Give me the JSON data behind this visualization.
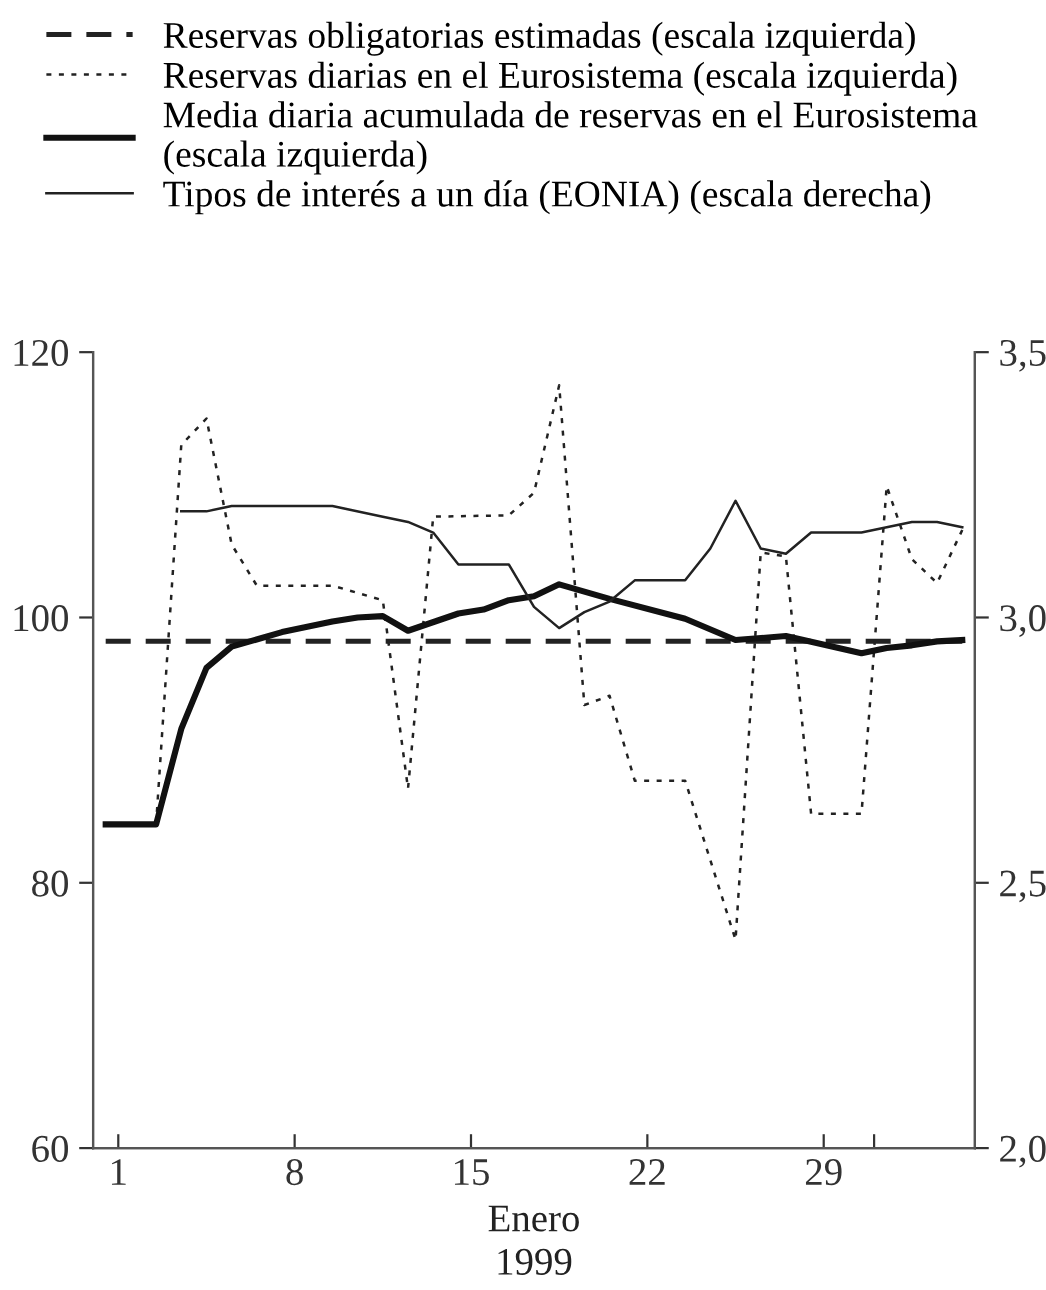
{
  "chart_data": {
    "type": "line",
    "xlabel": "Enero\n1999",
    "xlim": [
      0,
      35
    ],
    "xticks": [
      1,
      8,
      15,
      22,
      29,
      {
        "value": 31,
        "label": null
      }
    ],
    "ylim": [
      60,
      120
    ],
    "yticks": [
      60,
      80,
      100,
      120
    ],
    "y2lim": [
      2.0,
      3.5
    ],
    "y2ticks": [
      {
        "value": 2.0,
        "label": "2,0"
      },
      {
        "value": 2.5,
        "label": "2,5"
      },
      {
        "value": 3.0,
        "label": "3,0"
      },
      {
        "value": 3.5,
        "label": "3,5"
      }
    ],
    "grid": false,
    "legend": "top",
    "marker": "none",
    "series": [
      {
        "name": "Reservas obligatorias estimadas (escala izquierda)",
        "color": "#222222",
        "line_style": "dashed",
        "x": [
          0.5,
          34.5
        ],
        "values": [
          98.2,
          98.2
        ]
      },
      {
        "name": "Reservas diarias en el Eurosistema (escala izquierda)",
        "color": "#222222",
        "line_style": "dotted",
        "x": [
          2.5,
          3.5,
          4.5,
          5.5,
          6.5,
          9.5,
          11.5,
          12.5,
          13.5,
          16.5,
          17.5,
          18.5,
          19.5,
          20.5,
          21.5,
          23.5,
          25.5,
          26.5,
          27.5,
          28.5,
          30.5,
          31.5,
          32.5,
          33.5,
          34.5
        ],
        "values": [
          84.4,
          113,
          115,
          105.5,
          102.4,
          102.4,
          101.3,
          87.1,
          107.6,
          107.7,
          109.4,
          117.5,
          93.4,
          94.1,
          87.7,
          87.7,
          75.7,
          104.9,
          104.6,
          85.2,
          85.2,
          109.9,
          104.4,
          102.6,
          106.6
        ]
      },
      {
        "name": "Media diaria acumulada de reservas en el Eurosistema\n(escala izquierda)",
        "color": "#111111",
        "line_style": "solid",
        "x": [
          0.5,
          2.5,
          3.5,
          4.5,
          5.5,
          7.5,
          9.5,
          10.5,
          11.5,
          12.5,
          14.5,
          15.5,
          16.5,
          17.5,
          18.5,
          20.5,
          23.5,
          25.5,
          27.5,
          30.5,
          31.5,
          32.5,
          33.5,
          34.5
        ],
        "values": [
          84.4,
          84.4,
          91.6,
          96.2,
          97.8,
          98.9,
          99.7,
          100.0,
          100.1,
          99.0,
          100.3,
          100.6,
          101.3,
          101.6,
          102.5,
          101.4,
          99.9,
          98.3,
          98.6,
          97.3,
          97.7,
          97.9,
          98.2,
          98.3
        ]
      },
      {
        "name": "Tipos de interés a un día (EONIA) (escala derecha)",
        "color": "#222222",
        "line_style": "solid",
        "axis": "y2",
        "x": [
          3.5,
          4.5,
          5.5,
          9.5,
          11.5,
          12.5,
          13.5,
          14.5,
          16.5,
          17.5,
          18.5,
          19.5,
          20.5,
          21.5,
          23.5,
          24.5,
          25.5,
          26.5,
          27.5,
          28.5,
          30.5,
          31.5,
          32.5,
          33.5,
          34.5
        ],
        "values": [
          3.2,
          3.2,
          3.21,
          3.21,
          3.19,
          3.18,
          3.16,
          3.1,
          3.1,
          3.02,
          2.98,
          3.01,
          3.03,
          3.07,
          3.07,
          3.13,
          3.22,
          3.13,
          3.12,
          3.16,
          3.16,
          3.17,
          3.18,
          3.18,
          3.17
        ]
      }
    ]
  }
}
